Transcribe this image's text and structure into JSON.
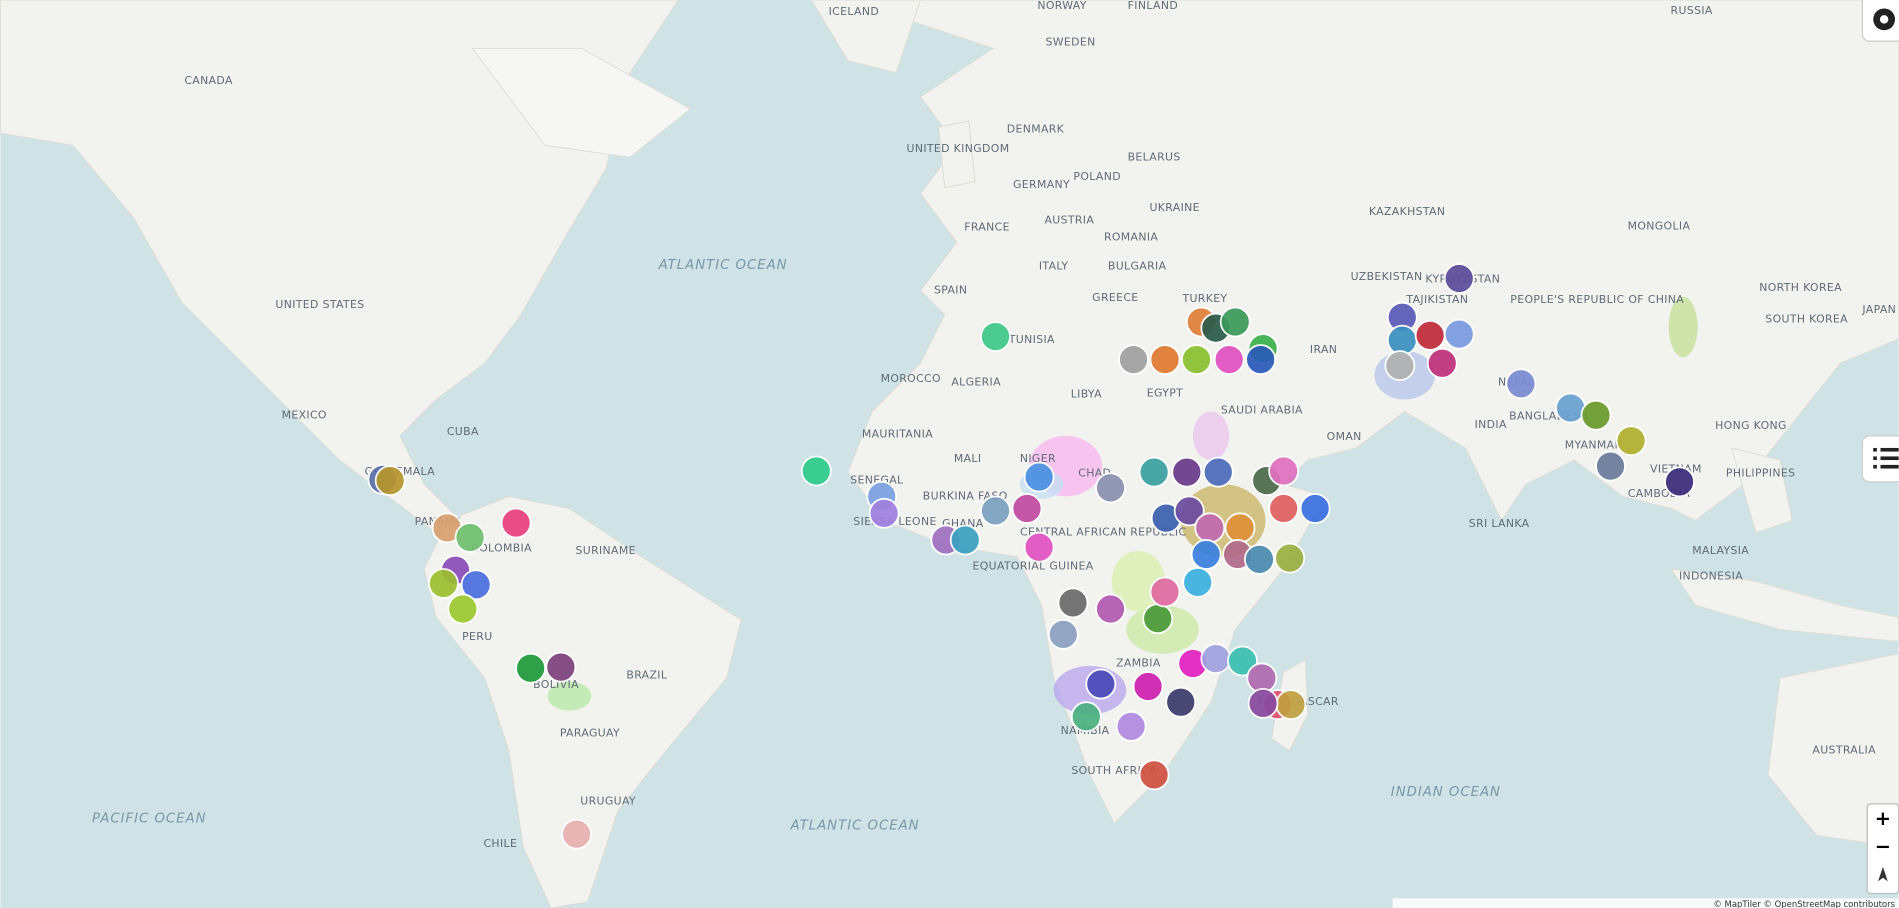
{
  "map": {
    "labels": [
      "CANADA",
      "UNITED STATES",
      "MEXICO",
      "CUBA",
      "GUATEMALA",
      "PANAMA",
      "COLOMBIA",
      "SURINAME",
      "PERU",
      "BRAZIL",
      "BOLIVIA",
      "PARAGUAY",
      "URUGUAY",
      "CHILE",
      "ICELAND",
      "NORWAY",
      "SWEDEN",
      "FINLAND",
      "RUSSIA",
      "DENMARK",
      "UNITED KINGDOM",
      "BELARUS",
      "GERMANY",
      "POLAND",
      "UKRAINE",
      "FRANCE",
      "AUSTRIA",
      "ROMANIA",
      "ITALY",
      "BULGARIA",
      "SPAIN",
      "GREECE",
      "TURKEY",
      "KAZAKHSTAN",
      "MONGOLIA",
      "UZBEKISTAN",
      "KYRGYZSTAN",
      "TAJIKISTAN",
      "IRAN",
      "TUNISIA",
      "MOROCCO",
      "ALGERIA",
      "LIBYA",
      "EGYPT",
      "SAUDI ARABIA",
      "OMAN",
      "MAURITANIA",
      "MALI",
      "NIGER",
      "CHAD",
      "SENEGAL",
      "BURKINA FASO",
      "SIERRA LEONE",
      "GHANA",
      "CENTRAL AFRICAN REPUBLIC",
      "EQUATORIAL GUINEA",
      "ZAMBIA",
      "NAMIBIA",
      "SOUTH AFRICA",
      "MADAGASCAR",
      "INDIA",
      "NEPAL",
      "BANGLADESH",
      "MYANMAR",
      "VIETNAM",
      "CAMBODIA",
      "SRI LANKA",
      "PEOPLE'S REPUBLIC OF CHINA",
      "HONG KONG",
      "NORTH KOREA",
      "SOUTH KOREA",
      "JAPAN",
      "PHILIPPINES",
      "MALAYSIA",
      "INDONESIA",
      "AUSTRALIA"
    ],
    "ocean_labels": [
      "ATLANTIC OCEAN",
      "ATLANTIC OCEAN",
      "PACIFIC OCEAN",
      "INDIAN OCEAN"
    ]
  },
  "controls": {
    "zoom_in": "+",
    "zoom_out": "−"
  },
  "attribution": "© MapTiler © OpenStreetMap contributors"
}
